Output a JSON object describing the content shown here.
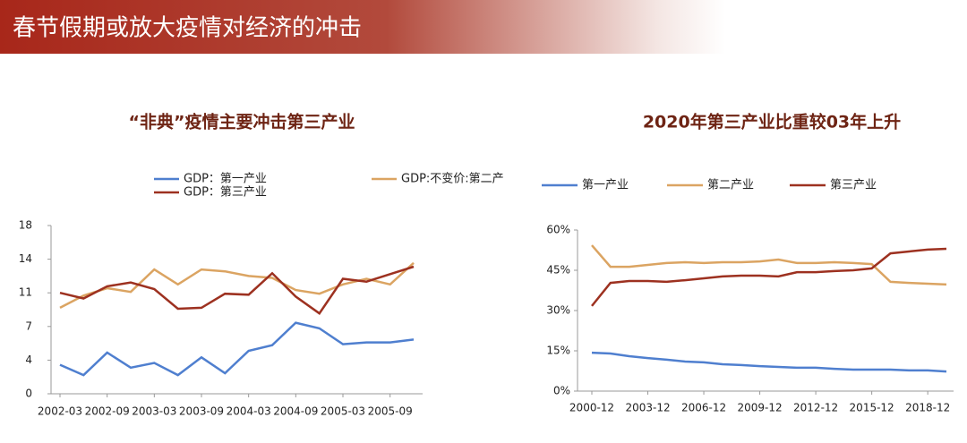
{
  "header": {
    "title": "春节假期或放大疫情对经济的冲击"
  },
  "chart_data": [
    {
      "type": "line",
      "title": "“非典”疫情主要冲击第三产业",
      "categories": [
        "2002-03",
        null,
        "2002-09",
        null,
        "2003-03",
        null,
        "2003-09",
        null,
        "2004-03",
        null,
        "2004-09",
        null,
        "2005-03",
        null,
        "2005-09",
        null
      ],
      "series": [
        {
          "name": "GDP：第一产业",
          "color": "#4f7fcf",
          "values": [
            3.1,
            2.0,
            4.4,
            2.8,
            3.3,
            2.0,
            3.9,
            2.2,
            4.6,
            5.2,
            7.6,
            7.0,
            5.3,
            5.5,
            5.5,
            5.8
          ]
        },
        {
          "name": "GDP:不变价:第二产",
          "color": "#dba462",
          "values": [
            9.2,
            10.5,
            11.3,
            10.9,
            13.3,
            11.7,
            13.3,
            13.1,
            12.6,
            12.4,
            11.1,
            10.7,
            11.7,
            12.3,
            11.7,
            14.0
          ]
        },
        {
          "name": "GDP：第三产业",
          "color": "#9d3120",
          "values": [
            10.8,
            10.2,
            11.5,
            11.9,
            11.2,
            9.1,
            9.2,
            10.7,
            10.6,
            12.9,
            10.4,
            8.6,
            12.3,
            12.0,
            12.8,
            13.6
          ]
        }
      ],
      "ylim": [
        0,
        18
      ],
      "yticks": [
        0,
        {
          "value": 3.6,
          "label": "4"
        },
        {
          "value": 7.2,
          "label": "7"
        },
        {
          "value": 10.8,
          "label": "11"
        },
        {
          "value": 14.4,
          "label": "14"
        },
        18
      ],
      "grid": false
    },
    {
      "type": "line",
      "title": "2020年第三产业比重较03年上升",
      "categories": [
        "2000-12",
        null,
        null,
        "2003-12",
        null,
        null,
        "2006-12",
        null,
        null,
        "2009-12",
        null,
        null,
        "2012-12",
        null,
        null,
        "2015-12",
        null,
        null,
        "2018-12",
        null
      ],
      "series": [
        {
          "name": "第一产业",
          "color": "#4f7fcf",
          "values": [
            14.3,
            14.0,
            13.0,
            12.3,
            11.7,
            11.0,
            10.7,
            10.0,
            9.7,
            9.3,
            9.0,
            8.7,
            8.7,
            8.3,
            8.0,
            8.0,
            8.0,
            7.7,
            7.7,
            7.3
          ]
        },
        {
          "name": "第二产业",
          "color": "#dba462",
          "values": [
            54.3,
            46.3,
            46.3,
            47.0,
            47.7,
            48.0,
            47.7,
            48.0,
            48.0,
            48.3,
            49.0,
            47.7,
            47.7,
            48.0,
            47.7,
            47.3,
            40.7,
            40.3,
            40.0,
            39.7
          ]
        },
        {
          "name": "第三产业",
          "color": "#9d3120",
          "values": [
            31.7,
            40.3,
            41.0,
            41.0,
            40.7,
            41.3,
            42.0,
            42.7,
            43.0,
            43.0,
            42.7,
            44.3,
            44.3,
            44.7,
            45.0,
            45.7,
            51.3,
            52.0,
            52.7,
            53.0
          ]
        }
      ],
      "ylim": [
        0,
        60
      ],
      "yticks": [
        {
          "value": 0,
          "label": "0%"
        },
        {
          "value": 15,
          "label": "15%"
        },
        {
          "value": 30,
          "label": "30%"
        },
        {
          "value": 45,
          "label": "45%"
        },
        {
          "value": 60,
          "label": "60%"
        }
      ],
      "grid": false
    }
  ]
}
